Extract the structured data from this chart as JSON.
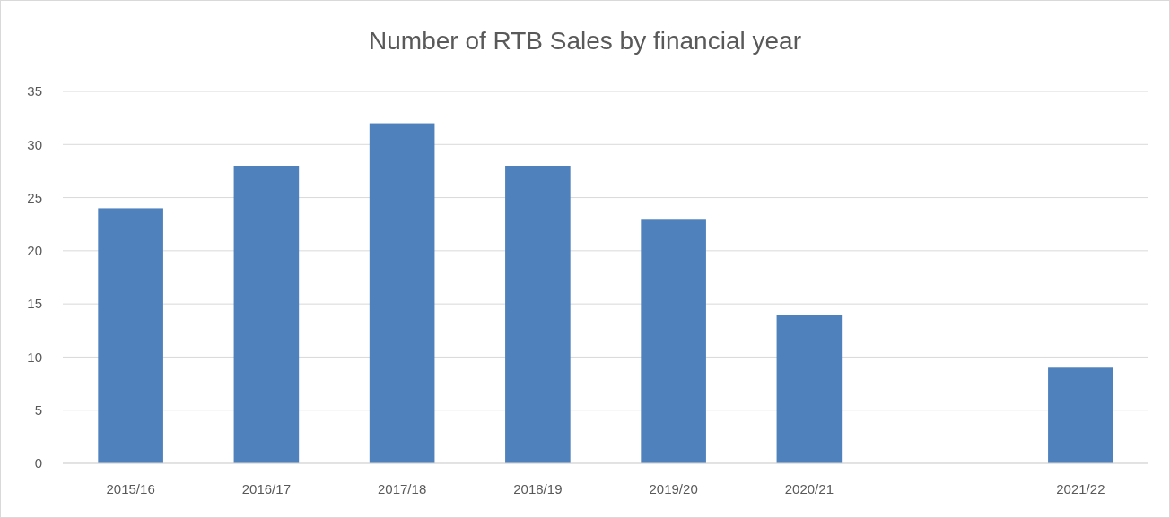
{
  "chart_data": {
    "type": "bar",
    "title": "Number of RTB Sales by financial year",
    "categories": [
      "2015/16",
      "2016/17",
      "2017/18",
      "2018/19",
      "2019/20",
      "2020/21",
      null,
      "2021/22"
    ],
    "values": [
      24,
      28,
      32,
      28,
      23,
      14,
      null,
      9
    ],
    "color": "#4f81bd",
    "ylim": [
      0,
      35
    ],
    "yticks": [
      0,
      5,
      10,
      15,
      20,
      25,
      30,
      35
    ],
    "grid": "y"
  }
}
